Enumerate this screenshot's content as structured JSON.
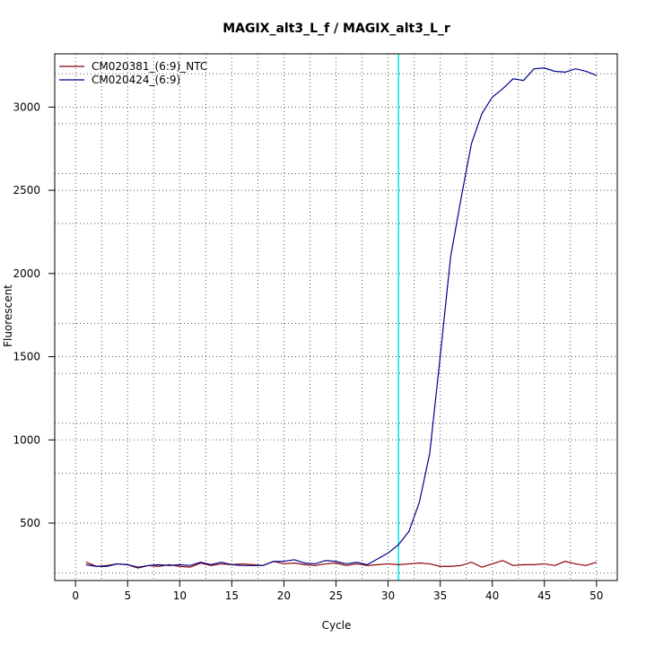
{
  "chart_data": {
    "type": "line",
    "title": "MAGIX_alt3_L_f / MAGIX_alt3_L_r",
    "xlabel": "Cycle",
    "ylabel": "Fluorescent",
    "xlim": [
      -2,
      52
    ],
    "ylim": [
      155,
      3320
    ],
    "x_ticks": [
      0,
      5,
      10,
      15,
      20,
      25,
      30,
      35,
      40,
      45,
      50
    ],
    "y_ticks": [
      500,
      1000,
      1500,
      2000,
      2500,
      3000
    ],
    "grid": "dotted",
    "legend_position": "top-left",
    "x": [
      1,
      2,
      3,
      4,
      5,
      6,
      7,
      8,
      9,
      10,
      11,
      12,
      13,
      14,
      15,
      16,
      17,
      18,
      19,
      20,
      21,
      22,
      23,
      24,
      25,
      26,
      27,
      28,
      29,
      30,
      31,
      32,
      33,
      34,
      35,
      36,
      37,
      38,
      39,
      40,
      41,
      42,
      43,
      44,
      45,
      46,
      47,
      48,
      49,
      50
    ],
    "threshold": {
      "x": 31,
      "color": "#00e5e5"
    },
    "series": [
      {
        "name": "CM020381_(6:9)_NTC",
        "color": "#8b0000",
        "values": [
          265,
          240,
          245,
          255,
          250,
          230,
          245,
          240,
          250,
          240,
          235,
          260,
          245,
          255,
          250,
          255,
          250,
          245,
          270,
          255,
          260,
          250,
          245,
          255,
          260,
          245,
          255,
          245,
          250,
          255,
          250,
          255,
          260,
          255,
          240,
          240,
          245,
          265,
          235,
          255,
          275,
          245,
          250,
          250,
          255,
          245,
          270,
          255,
          245,
          265
        ]
      },
      {
        "name": "CM020424_(6:9)",
        "color": "#00008b",
        "values": [
          250,
          240,
          240,
          255,
          250,
          235,
          245,
          250,
          245,
          250,
          245,
          265,
          250,
          265,
          250,
          245,
          245,
          245,
          270,
          270,
          280,
          260,
          255,
          275,
          270,
          255,
          265,
          250,
          285,
          320,
          370,
          450,
          625,
          920,
          1500,
          2100,
          2450,
          2780,
          2960,
          3060,
          3110,
          3170,
          3160,
          3230,
          3235,
          3215,
          3210,
          3230,
          3215,
          3190
        ]
      }
    ]
  }
}
